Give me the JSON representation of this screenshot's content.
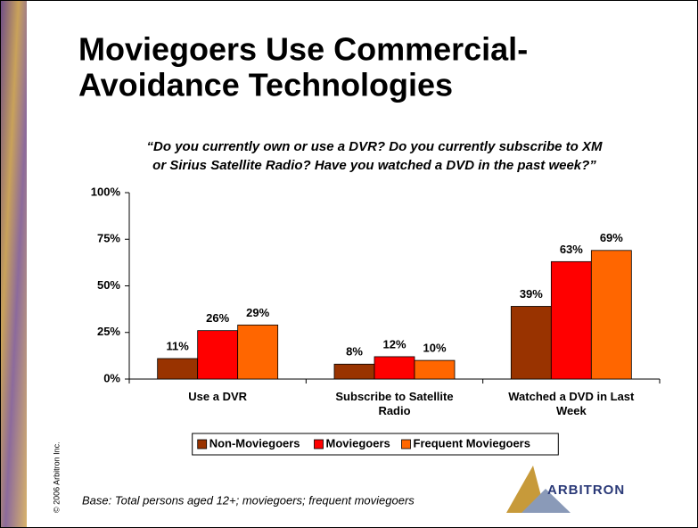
{
  "chart_data": {
    "type": "bar",
    "title": [
      "Moviegoers Use Commercial-",
      "Avoidance Technologies"
    ],
    "subtitle": [
      "“Do you currently own or use a DVR?  Do you currently subscribe to XM",
      "or Sirius Satellite Radio? Have you watched a DVD in the past week?”"
    ],
    "categories": [
      "Use a DVR",
      "Subscribe to Satellite Radio",
      "Watched a DVD in Last Week"
    ],
    "series": [
      {
        "name": "Non-Moviegoers",
        "color": "#993300",
        "values": [
          11,
          8,
          39
        ],
        "value_labels": [
          "11%",
          "8%",
          "39%"
        ]
      },
      {
        "name": "Moviegoers",
        "color": "#ff0000",
        "values": [
          26,
          12,
          63
        ],
        "value_labels": [
          "26%",
          "12%",
          "63%"
        ]
      },
      {
        "name": "Frequent Moviegoers",
        "color": "#ff6600",
        "values": [
          29,
          10,
          69
        ],
        "value_labels": [
          "29%",
          "10%",
          "69%"
        ]
      }
    ],
    "ylim": [
      0,
      100
    ],
    "yticks": [
      {
        "value": 0,
        "label": "0%"
      },
      {
        "value": 25,
        "label": "25%"
      },
      {
        "value": 50,
        "label": "50%"
      },
      {
        "value": 75,
        "label": "75%"
      },
      {
        "value": 100,
        "label": "100%"
      }
    ],
    "legend": "bottom",
    "footnote": "Base:  Total persons aged 12+; moviegoers; frequent moviegoers",
    "copyright": "© 2006 Arbitron Inc.",
    "logo": "ARBITRON"
  }
}
